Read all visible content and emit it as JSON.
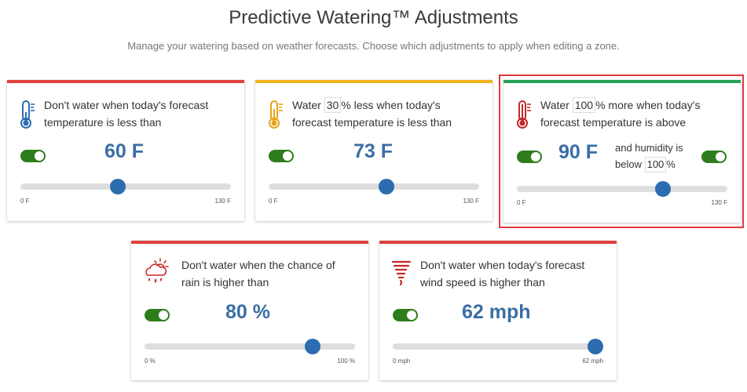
{
  "page": {
    "title": "Predictive Watering™ Adjustments",
    "subtitle": "Manage your watering based on weather forecasts. Choose which adjustments to apply when editing a zone."
  },
  "colors": {
    "red": "#e04040",
    "yellow": "#f0b41e",
    "green": "#25a25a",
    "blue": "#3a6ea5",
    "toggle_on": "#2e7d1c"
  },
  "cards": {
    "low_temp": {
      "icon": "thermometer-cold-icon",
      "text": "Don't water when today's forecast temperature is less than",
      "value": "60 F",
      "enabled": true,
      "min_label": "0 F",
      "max_label": "130 F",
      "min": 0,
      "max": 130,
      "current": 60
    },
    "reduce_temp": {
      "icon": "thermometer-warm-icon",
      "text_before": "Water",
      "percent": "30",
      "text_after": "% less when today's forecast temperature is less than",
      "value": "73 F",
      "enabled": true,
      "min_label": "0 F",
      "max_label": "130 F",
      "min": 0,
      "max": 130,
      "current": 73
    },
    "increase_temp": {
      "icon": "thermometer-hot-icon",
      "text_before": "Water",
      "percent": "100",
      "text_after": "% more when today's forecast temperature is above",
      "value": "90 F",
      "enabled": true,
      "humidity_before": "and humidity is below",
      "humidity": "100",
      "humidity_after": "%",
      "humidity_enabled": true,
      "min_label": "0 F",
      "max_label": "130 F",
      "min": 0,
      "max": 130,
      "current": 90
    },
    "rain": {
      "icon": "rain-cloud-icon",
      "text": "Don't water when the chance of rain is higher than",
      "value": "80 %",
      "enabled": true,
      "min_label": "0 %",
      "max_label": "100 %",
      "min": 0,
      "max": 100,
      "current": 80
    },
    "wind": {
      "icon": "tornado-icon",
      "text": "Don't water when today's forecast wind speed is higher than",
      "value": "62 mph",
      "enabled": true,
      "min_label": "0 mph",
      "max_label": "62 mph",
      "min": 0,
      "max": 62,
      "current": 62
    }
  }
}
